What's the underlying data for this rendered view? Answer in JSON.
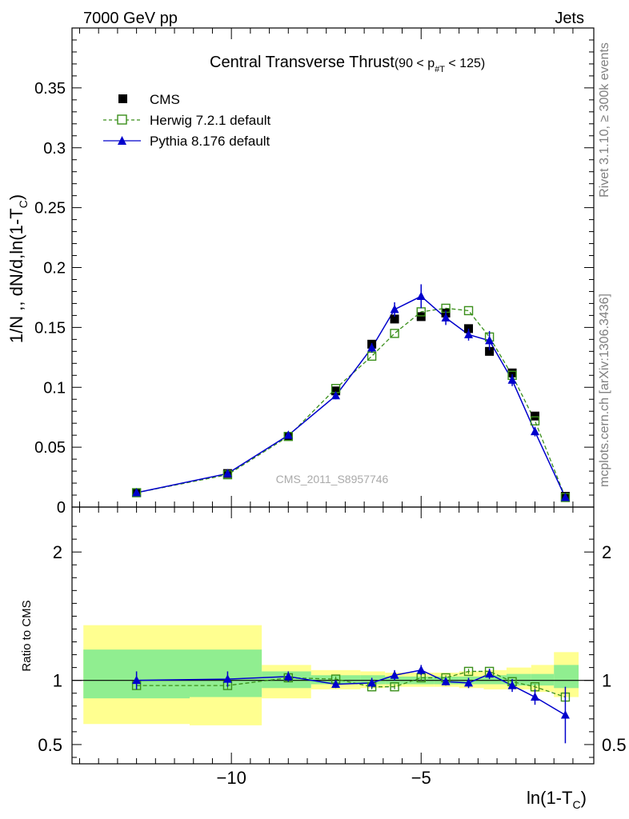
{
  "header": {
    "left": "7000 GeV pp",
    "right": "Jets"
  },
  "side_labels": {
    "rivet": "Rivet 3.1.10, ≥ 300k events",
    "mcplots": "mcplots.cern.ch [arXiv:1306.3436]"
  },
  "colors": {
    "cms": "#000000",
    "herwig": "#3a8f1a",
    "pythia": "#0000cc",
    "band_inner": "#90ee90",
    "band_outer": "#ffff90"
  },
  "chart_data": [
    {
      "type": "line",
      "title": "Central Transverse Thrust",
      "title_suffix": "(90 < p",
      "title_sub": "#T",
      "title_end": "  < 125)",
      "ylabel": "1/N ,, dN/d,ln(1-T",
      "ylabel_sub": "C",
      "ylabel_end": ")",
      "watermark": "CMS_2011_S8957746",
      "xlim": [
        -14.2,
        -0.45
      ],
      "ylim": [
        0,
        0.4
      ],
      "yticks": [
        0,
        0.05,
        0.1,
        0.15,
        0.2,
        0.25,
        0.3,
        0.35
      ],
      "ytick_labels": [
        "0",
        "0.05",
        "0.1",
        "0.15",
        "0.2",
        "0.25",
        "0.3",
        "0.35"
      ],
      "legend": [
        "CMS",
        "Herwig 7.2.1 default",
        "Pythia 8.176 default"
      ],
      "series": [
        {
          "name": "CMS",
          "x": [
            -12.5,
            -10.1,
            -8.5,
            -7.25,
            -6.3,
            -5.7,
            -5.0,
            -4.35,
            -3.75,
            -3.2,
            -2.6,
            -2.0,
            -1.2
          ],
          "values": [
            0.012,
            0.028,
            0.059,
            0.097,
            0.136,
            0.157,
            0.159,
            0.162,
            0.149,
            0.13,
            0.112,
            0.076,
            0.009
          ]
        },
        {
          "name": "Herwig 7.2.1 default",
          "x": [
            -12.5,
            -10.1,
            -8.5,
            -7.25,
            -6.3,
            -5.7,
            -5.0,
            -4.35,
            -3.75,
            -3.2,
            -2.6,
            -2.0,
            -1.2
          ],
          "values": [
            0.012,
            0.027,
            0.059,
            0.099,
            0.126,
            0.145,
            0.163,
            0.166,
            0.164,
            0.142,
            0.11,
            0.072,
            0.008
          ]
        },
        {
          "name": "Pythia 8.176 default",
          "x": [
            -12.5,
            -10.1,
            -8.5,
            -7.25,
            -6.3,
            -5.7,
            -5.0,
            -4.35,
            -3.75,
            -3.2,
            -2.6,
            -2.0,
            -1.2
          ],
          "values": [
            0.012,
            0.028,
            0.06,
            0.093,
            0.133,
            0.165,
            0.176,
            0.158,
            0.144,
            0.139,
            0.106,
            0.063,
            0.008
          ],
          "errors": [
            0.001,
            0.001,
            0.002,
            0.003,
            0.004,
            0.006,
            0.01,
            0.006,
            0.005,
            0.008,
            0.005,
            0.004,
            0.003
          ]
        }
      ]
    },
    {
      "type": "line",
      "ylabel": "Ratio to CMS",
      "xlabel": "ln(1-T",
      "xlabel_sub": "C",
      "xlabel_end": ")",
      "xlim": [
        -14.2,
        -0.45
      ],
      "ylim": [
        0.35,
        2.35
      ],
      "xticks": [
        -10,
        -5
      ],
      "xtick_labels": [
        "−10",
        "−5"
      ],
      "yticks": [
        0.5,
        1,
        2
      ],
      "ytick_labels": [
        "0.5",
        "1",
        "2"
      ],
      "bands": [
        {
          "x0": -13.9,
          "x1": -11.1,
          "inner": [
            0.86,
            1.24
          ],
          "outer": [
            0.66,
            1.43
          ]
        },
        {
          "x0": -11.1,
          "x1": -9.2,
          "inner": [
            0.87,
            1.24
          ],
          "outer": [
            0.65,
            1.43
          ]
        },
        {
          "x0": -9.2,
          "x1": -7.9,
          "inner": [
            0.94,
            1.07
          ],
          "outer": [
            0.86,
            1.12
          ]
        },
        {
          "x0": -7.9,
          "x1": -6.6,
          "inner": [
            0.97,
            1.04
          ],
          "outer": [
            0.93,
            1.08
          ]
        },
        {
          "x0": -6.6,
          "x1": -5.95,
          "inner": [
            0.97,
            1.04
          ],
          "outer": [
            0.94,
            1.07
          ]
        },
        {
          "x0": -5.95,
          "x1": -5.3,
          "inner": [
            0.97,
            1.03
          ],
          "outer": [
            0.95,
            1.06
          ]
        },
        {
          "x0": -5.3,
          "x1": -4.65,
          "inner": [
            0.97,
            1.03
          ],
          "outer": [
            0.95,
            1.06
          ]
        },
        {
          "x0": -4.65,
          "x1": -4.0,
          "inner": [
            0.97,
            1.03
          ],
          "outer": [
            0.95,
            1.06
          ]
        },
        {
          "x0": -4.0,
          "x1": -3.35,
          "inner": [
            0.97,
            1.03
          ],
          "outer": [
            0.94,
            1.07
          ]
        },
        {
          "x0": -3.35,
          "x1": -2.75,
          "inner": [
            0.97,
            1.04
          ],
          "outer": [
            0.93,
            1.08
          ]
        },
        {
          "x0": -2.75,
          "x1": -2.1,
          "inner": [
            0.96,
            1.05
          ],
          "outer": [
            0.93,
            1.1
          ]
        },
        {
          "x0": -2.1,
          "x1": -1.5,
          "inner": [
            0.96,
            1.05
          ],
          "outer": [
            0.91,
            1.12
          ]
        },
        {
          "x0": -1.5,
          "x1": -0.85,
          "inner": [
            0.94,
            1.12
          ],
          "outer": [
            0.87,
            1.22
          ]
        }
      ],
      "series": [
        {
          "name": "Herwig 7.2.1 default",
          "x": [
            -12.5,
            -10.1,
            -8.5,
            -7.25,
            -6.3,
            -5.7,
            -5.0,
            -4.35,
            -3.75,
            -3.2,
            -2.6,
            -2.0,
            -1.2
          ],
          "values": [
            0.96,
            0.96,
            1.02,
            1.01,
            0.95,
            0.95,
            1.02,
            1.02,
            1.07,
            1.07,
            0.99,
            0.95,
            0.87
          ],
          "errors": [
            0.03,
            0.03,
            0.03,
            0.02,
            0.02,
            0.02,
            0.02,
            0.02,
            0.02,
            0.02,
            0.02,
            0.02,
            0.03
          ]
        },
        {
          "name": "Pythia 8.176 default",
          "x": [
            -12.5,
            -10.1,
            -8.5,
            -7.25,
            -6.3,
            -5.7,
            -5.0,
            -4.35,
            -3.75,
            -3.2,
            -2.6,
            -2.0,
            -1.2
          ],
          "values": [
            1.0,
            1.01,
            1.03,
            0.97,
            0.98,
            1.04,
            1.08,
            0.99,
            0.98,
            1.05,
            0.96,
            0.87,
            0.73
          ],
          "errors": [
            0.07,
            0.06,
            0.04,
            0.03,
            0.04,
            0.04,
            0.04,
            0.03,
            0.04,
            0.04,
            0.05,
            0.06,
            0.22
          ]
        }
      ]
    }
  ]
}
